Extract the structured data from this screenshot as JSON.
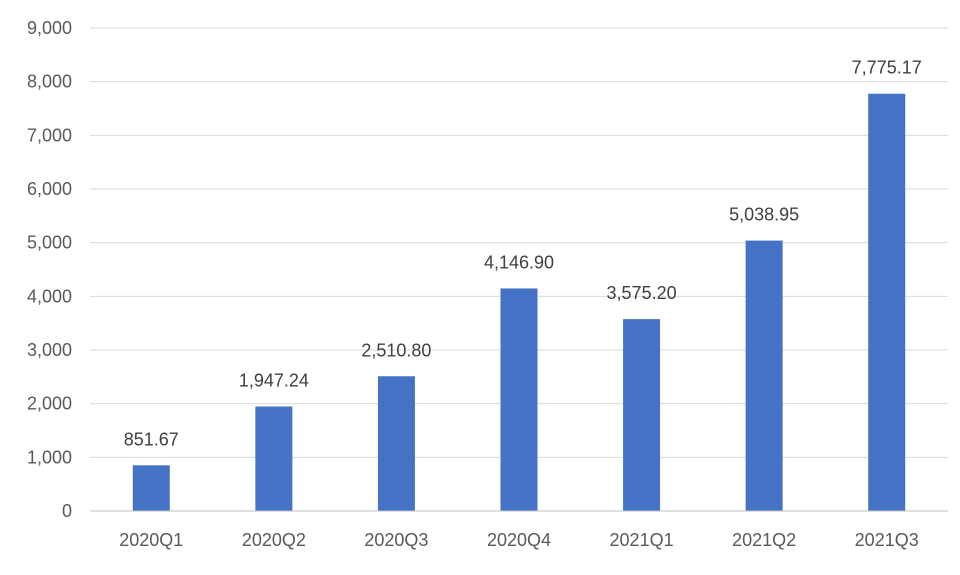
{
  "chart_data": {
    "type": "bar",
    "title": "",
    "xlabel": "",
    "ylabel": "",
    "categories": [
      "2020Q1",
      "2020Q2",
      "2020Q3",
      "2020Q4",
      "2021Q1",
      "2021Q2",
      "2021Q3"
    ],
    "values": [
      851.67,
      1947.24,
      2510.8,
      4146.9,
      3575.2,
      5038.95,
      7775.17
    ],
    "data_labels": [
      "851.67",
      "1,947.24",
      "2,510.80",
      "4,146.90",
      "3,575.20",
      "5,038.95",
      "7,775.17"
    ],
    "ylim": [
      0,
      9000
    ],
    "yticks": [
      0,
      1000,
      2000,
      3000,
      4000,
      5000,
      6000,
      7000,
      8000,
      9000
    ],
    "ytick_labels": [
      "0",
      "1,000",
      "2,000",
      "3,000",
      "4,000",
      "5,000",
      "6,000",
      "7,000",
      "8,000",
      "9,000"
    ],
    "grid": true,
    "legend": "none",
    "bar_color": "#4472c4"
  }
}
